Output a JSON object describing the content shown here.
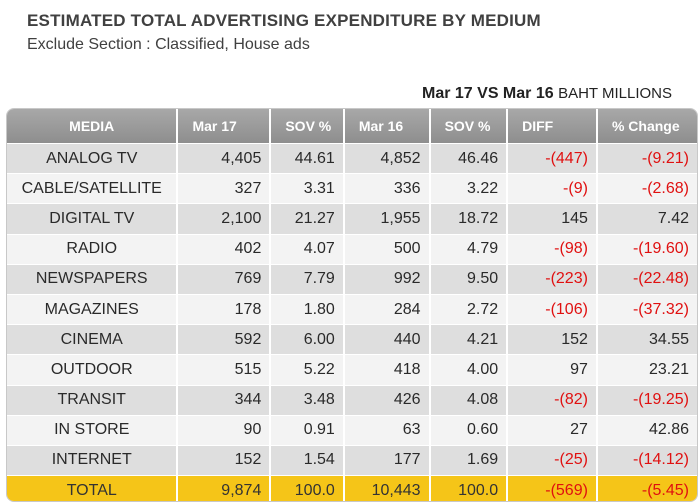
{
  "title": "ESTIMATED TOTAL ADVERTISING EXPENDITURE BY MEDIUM",
  "subtitle": "Exclude Section : Classified, House ads",
  "comparison": {
    "label": "Mar 17 VS Mar 16",
    "unit": "BAHT MILLIONS"
  },
  "colors": {
    "header": "#9a9a9a",
    "negative": "#e01010",
    "total_row": "#f5c518"
  },
  "chart_data": {
    "type": "table",
    "columns": [
      "MEDIA",
      "Mar 17",
      "SOV %",
      "Mar 16",
      "SOV %",
      "DIFF",
      "% Change"
    ],
    "rows": [
      [
        "ANALOG   TV",
        "4,405",
        "44.61",
        "4,852",
        "46.46",
        "-(447)",
        "-(9.21)"
      ],
      [
        "CABLE/SATELLITE",
        "327",
        "3.31",
        "336",
        "3.22",
        "-(9)",
        "-(2.68)"
      ],
      [
        "DIGITAL TV",
        "2,100",
        "21.27",
        "1,955",
        "18.72",
        "145",
        "7.42"
      ],
      [
        "RADIO",
        "402",
        "4.07",
        "500",
        "4.79",
        "-(98)",
        "-(19.60)"
      ],
      [
        "NEWSPAPERS",
        "769",
        "7.79",
        "992",
        "9.50",
        "-(223)",
        "-(22.48)"
      ],
      [
        "MAGAZINES",
        "178",
        "1.80",
        "284",
        "2.72",
        "-(106)",
        "-(37.32)"
      ],
      [
        "CINEMA",
        "592",
        "6.00",
        "440",
        "4.21",
        "152",
        "34.55"
      ],
      [
        "OUTDOOR",
        "515",
        "5.22",
        "418",
        "4.00",
        "97",
        "23.21"
      ],
      [
        "TRANSIT",
        "344",
        "3.48",
        "426",
        "4.08",
        "-(82)",
        "-(19.25)"
      ],
      [
        "IN STORE",
        "90",
        "0.91",
        "63",
        "0.60",
        "27",
        "42.86"
      ],
      [
        "INTERNET",
        "152",
        "1.54",
        "177",
        "1.69",
        "-(25)",
        "-(14.12)"
      ]
    ],
    "total": [
      "TOTAL",
      "9,874",
      "100.0",
      "10,443",
      "100.0",
      "-(569)",
      "-(5.45)"
    ]
  }
}
